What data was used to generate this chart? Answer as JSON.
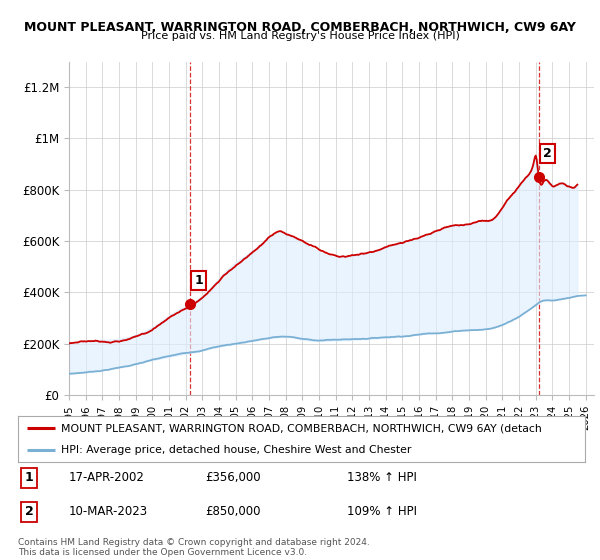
{
  "title1": "MOUNT PLEASANT, WARRINGTON ROAD, COMBERBACH, NORTHWICH, CW9 6AY",
  "title2": "Price paid vs. HM Land Registry's House Price Index (HPI)",
  "ylabel_ticks": [
    "£0",
    "£200K",
    "£400K",
    "£600K",
    "£800K",
    "£1M",
    "£1.2M"
  ],
  "ytick_values": [
    0,
    200000,
    400000,
    600000,
    800000,
    1000000,
    1200000
  ],
  "ylim": [
    0,
    1300000
  ],
  "xlim_start": 1995.0,
  "xlim_end": 2026.5,
  "red_line_color": "#cc0000",
  "blue_line_color": "#7ab0d4",
  "fill_color": "#ddeeff",
  "grid_color": "#cccccc",
  "bg_color": "#ffffff",
  "sale1_date": "17-APR-2002",
  "sale1_price": "£356,000",
  "sale1_hpi": "138% ↑ HPI",
  "sale2_date": "10-MAR-2023",
  "sale2_price": "£850,000",
  "sale2_hpi": "109% ↑ HPI",
  "legend_red": "MOUNT PLEASANT, WARRINGTON ROAD, COMBERBACH, NORTHWICH, CW9 6AY (detach",
  "legend_blue": "HPI: Average price, detached house, Cheshire West and Chester",
  "footnote": "Contains HM Land Registry data © Crown copyright and database right 2024.\nThis data is licensed under the Open Government Licence v3.0.",
  "marker1_x": 2002.29,
  "marker1_y": 356000,
  "marker2_x": 2023.19,
  "marker2_y": 850000,
  "dashed_line1_x": 2002.29,
  "dashed_line2_x": 2023.19
}
